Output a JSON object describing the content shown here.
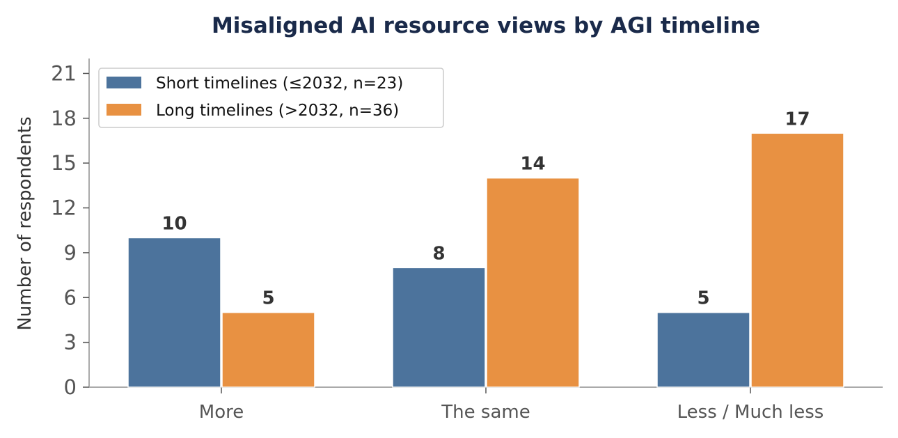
{
  "chart_data": {
    "type": "bar",
    "title": "Misaligned AI resource views by AGI timeline",
    "xlabel": "",
    "ylabel": "Number of respondents",
    "categories": [
      "More",
      "The same",
      "Less / Much less"
    ],
    "series": [
      {
        "name": "Short timelines (≤2032, n=23)",
        "values": [
          10,
          8,
          5
        ],
        "color": "#4c739c"
      },
      {
        "name": "Long timelines (>2032, n=36)",
        "values": [
          5,
          14,
          17
        ],
        "color": "#e89142"
      }
    ],
    "ylim": [
      0,
      22
    ],
    "yticks": [
      0,
      3,
      6,
      9,
      12,
      15,
      18,
      21
    ],
    "grid": false,
    "legend": "top-left",
    "data_labels": true
  }
}
